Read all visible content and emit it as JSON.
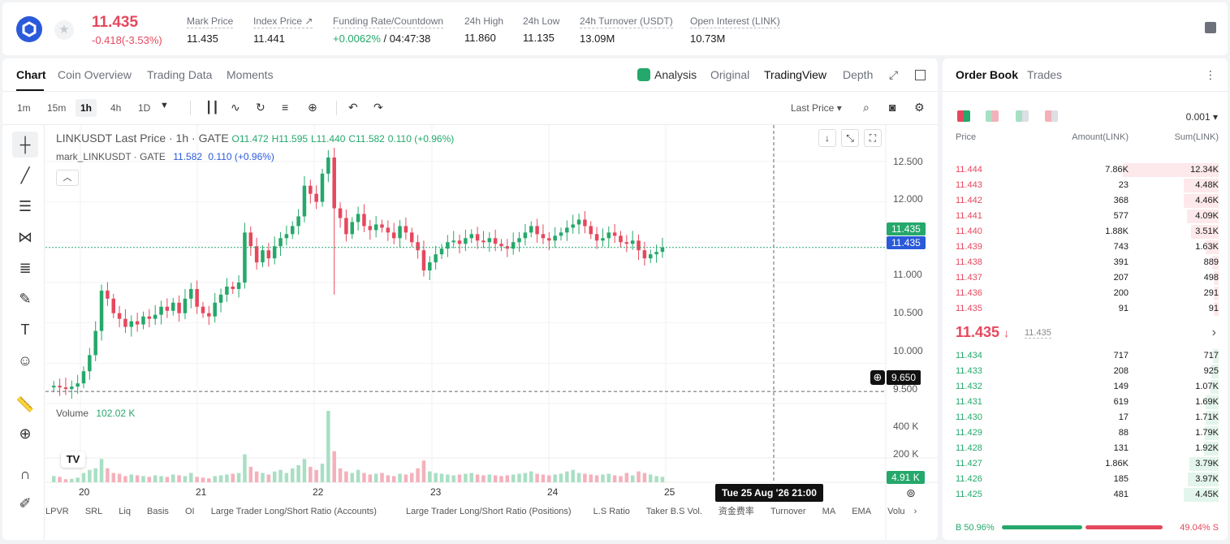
{
  "header": {
    "last_price": "11.435",
    "change": "-0.418(-3.53%)",
    "mark_price_label": "Mark Price",
    "mark_price": "11.435",
    "index_price_label": "Index Price ↗",
    "index_price": "11.441",
    "funding_label": "Funding Rate/Countdown",
    "funding_rate": "+0.0062%",
    "countdown": "/ 04:47:38",
    "high_label": "24h High",
    "high": "11.860",
    "low_label": "24h Low",
    "low": "11.135",
    "turnover_label": "24h Turnover (USDT)",
    "turnover": "13.09M",
    "oi_label": "Open Interest (LINK)",
    "oi": "10.73M",
    "colors": {
      "up": "#25a86b",
      "down": "#e5485d",
      "brand": "#2a5ada"
    }
  },
  "chart_tabs": [
    "Chart",
    "Coin Overview",
    "Trading Data",
    "Moments"
  ],
  "view_tabs": [
    "Analysis",
    "Original",
    "TradingView",
    "Depth"
  ],
  "timeframes": [
    "1m",
    "15m",
    "1h",
    "4h",
    "1D"
  ],
  "active_timeframe": "1h",
  "price_source": "Last Price",
  "legend": {
    "symbol": "LINKUSDT Last Price · 1h · GATE",
    "o": "O11.472",
    "h": "H11.595",
    "l": "L11.440",
    "c": "C11.582",
    "chg": "0.110 (+0.96%)",
    "mark_label": "mark_LINKUSDT · GATE",
    "mark_value": "11.582",
    "mark_chg": "0.110 (+0.96%)"
  },
  "y_axis": [
    "12.500",
    "12.000",
    "11.500",
    "11.000",
    "10.500",
    "10.000",
    "9.500"
  ],
  "price_tags": {
    "last": "11.435",
    "mark": "11.435",
    "cross": "9.650",
    "volume": "4.91 K"
  },
  "volume": {
    "label": "Volume",
    "value": "102.02 K",
    "axis": [
      "400 K",
      "200 K"
    ]
  },
  "x_axis": [
    "20",
    "21",
    "22",
    "23",
    "24",
    "25"
  ],
  "crosshair_time": "Tue 25 Aug '26   21:00",
  "indicators": [
    "LPVR",
    "SRL",
    "Liq",
    "Basis",
    "OI",
    "Large Trader Long/Short Ratio (Accounts)",
    "Large Trader Long/Short Ratio (Positions)",
    "L.S Ratio",
    "Taker B.S Vol.",
    "资金费率",
    "Turnover",
    "MA",
    "EMA",
    "Volu"
  ],
  "chart_data": {
    "type": "candlestick",
    "title": "LINKUSDT Last Price · 1h · GATE",
    "ylim": [
      9.5,
      12.6
    ],
    "x_labels": [
      "20",
      "21",
      "22",
      "23",
      "24",
      "25"
    ],
    "closes": [
      9.72,
      9.7,
      9.68,
      9.71,
      9.75,
      9.9,
      10.1,
      10.4,
      10.9,
      10.8,
      10.62,
      10.55,
      10.45,
      10.52,
      10.48,
      10.58,
      10.55,
      10.6,
      10.7,
      10.65,
      10.75,
      10.62,
      10.8,
      10.92,
      10.7,
      10.62,
      10.58,
      10.75,
      10.85,
      10.95,
      10.92,
      11.0,
      11.62,
      11.45,
      11.25,
      11.4,
      11.3,
      11.45,
      11.55,
      11.6,
      11.7,
      11.82,
      12.2,
      12.1,
      12.0,
      12.35,
      12.55,
      11.92,
      11.8,
      11.6,
      11.75,
      11.85,
      11.7,
      11.65,
      11.72,
      11.68,
      11.62,
      11.55,
      11.7,
      11.62,
      11.5,
      11.4,
      11.15,
      11.25,
      11.35,
      11.42,
      11.5,
      11.52,
      11.48,
      11.55,
      11.6,
      11.52,
      11.5,
      11.55,
      11.48,
      11.45,
      11.42,
      11.5,
      11.55,
      11.62,
      11.7,
      11.6,
      11.55,
      11.52,
      11.58,
      11.62,
      11.68,
      11.72,
      11.78,
      11.7,
      11.6,
      11.52,
      11.55,
      11.62,
      11.58,
      11.5,
      11.48,
      11.52,
      11.4,
      11.3,
      11.35,
      11.38,
      11.435
    ],
    "volume_k": [
      40,
      35,
      20,
      22,
      30,
      60,
      80,
      90,
      150,
      90,
      60,
      55,
      40,
      50,
      45,
      40,
      35,
      45,
      40,
      35,
      50,
      45,
      40,
      60,
      35,
      30,
      25,
      40,
      45,
      50,
      55,
      60,
      180,
      100,
      70,
      60,
      50,
      70,
      80,
      60,
      90,
      110,
      150,
      100,
      80,
      120,
      460,
      200,
      90,
      70,
      60,
      80,
      60,
      50,
      55,
      60,
      45,
      40,
      55,
      50,
      60,
      90,
      140,
      70,
      60,
      55,
      50,
      45,
      50,
      55,
      60,
      50,
      45,
      50,
      45,
      40,
      45,
      50,
      55,
      60,
      70,
      55,
      50,
      45,
      50,
      55,
      70,
      80,
      60,
      55,
      50,
      45,
      50,
      55,
      45,
      40,
      60,
      45,
      70,
      60,
      50,
      40,
      35
    ]
  },
  "orderbook": {
    "tabs": [
      "Order Book",
      "Trades"
    ],
    "precision": "0.001",
    "headers": [
      "Price",
      "Amount(LINK)",
      "Sum(LINK)"
    ],
    "asks": [
      {
        "price": "11.444",
        "amount": "7.86K",
        "sum": "12.34K"
      },
      {
        "price": "11.443",
        "amount": "23",
        "sum": "4.48K"
      },
      {
        "price": "11.442",
        "amount": "368",
        "sum": "4.46K"
      },
      {
        "price": "11.441",
        "amount": "577",
        "sum": "4.09K"
      },
      {
        "price": "11.440",
        "amount": "1.88K",
        "sum": "3.51K"
      },
      {
        "price": "11.439",
        "amount": "743",
        "sum": "1.63K"
      },
      {
        "price": "11.438",
        "amount": "391",
        "sum": "889"
      },
      {
        "price": "11.437",
        "amount": "207",
        "sum": "498"
      },
      {
        "price": "11.436",
        "amount": "200",
        "sum": "291"
      },
      {
        "price": "11.435",
        "amount": "91",
        "sum": "91"
      }
    ],
    "bids": [
      {
        "price": "11.434",
        "amount": "717",
        "sum": "717"
      },
      {
        "price": "11.433",
        "amount": "208",
        "sum": "925"
      },
      {
        "price": "11.432",
        "amount": "149",
        "sum": "1.07K"
      },
      {
        "price": "11.431",
        "amount": "619",
        "sum": "1.69K"
      },
      {
        "price": "11.430",
        "amount": "17",
        "sum": "1.71K"
      },
      {
        "price": "11.429",
        "amount": "88",
        "sum": "1.79K"
      },
      {
        "price": "11.428",
        "amount": "131",
        "sum": "1.92K"
      },
      {
        "price": "11.427",
        "amount": "1.86K",
        "sum": "3.79K"
      },
      {
        "price": "11.426",
        "amount": "185",
        "sum": "3.97K"
      },
      {
        "price": "11.425",
        "amount": "481",
        "sum": "4.45K"
      }
    ],
    "mid_price": "11.435",
    "mid_ref": "11.435",
    "buy_ratio": "B 50.96%",
    "sell_ratio": "49.04% S",
    "buy_fraction": 0.5096
  }
}
